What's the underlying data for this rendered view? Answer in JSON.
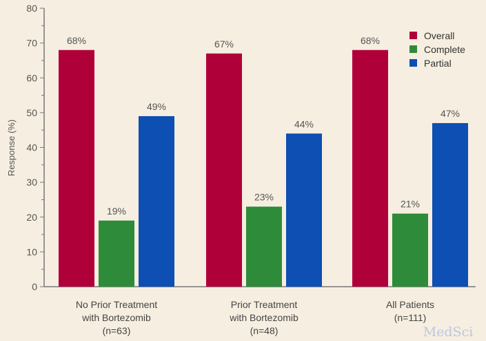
{
  "chart_data": {
    "type": "bar",
    "ylabel": "Response (%)",
    "ylim": [
      0,
      80
    ],
    "yticks": [
      0,
      10,
      20,
      30,
      40,
      50,
      60,
      70,
      80
    ],
    "categories": [
      [
        "No Prior Treatment",
        "with Bortezomib",
        "(n=63)"
      ],
      [
        "Prior Treatment",
        "with Bortezomib",
        "(n=48)"
      ],
      [
        "All Patients",
        "(n=111)"
      ]
    ],
    "series": [
      {
        "name": "Overall",
        "color": "#b0003a",
        "values": [
          68,
          67,
          68
        ],
        "labels": [
          "68%",
          "67%",
          "68%"
        ]
      },
      {
        "name": "Complete",
        "color": "#2e8b3a",
        "values": [
          19,
          23,
          21
        ],
        "labels": [
          "19%",
          "23%",
          "21%"
        ]
      },
      {
        "name": "Partial",
        "color": "#0d4fb3",
        "values": [
          49,
          44,
          47
        ],
        "labels": [
          "49%",
          "44%",
          "47%"
        ]
      }
    ],
    "legend_position": "top-right",
    "grid": false
  },
  "watermark": "MedSci"
}
